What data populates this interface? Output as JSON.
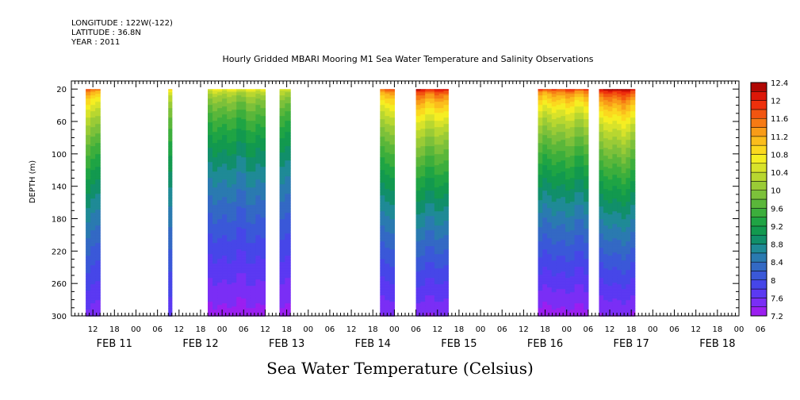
{
  "header": {
    "longitude": "LONGITUDE : 122W(-122)",
    "latitude": "LATITUDE : 36.8N",
    "year": "YEAR : 2011"
  },
  "chart_data": {
    "type": "heatmap",
    "title": "Hourly Gridded MBARI Mooring M1 Sea Water Temperature and Salinity Observations",
    "variable_label": "Sea Water Temperature (Celsius)",
    "ylabel": "DEPTH (m)",
    "y_inverted": true,
    "ylim": [
      10,
      300
    ],
    "y_ticks": [
      20,
      60,
      100,
      140,
      180,
      220,
      260,
      300
    ],
    "x_unit": "hours since 2011-02-10 12:00 (hour-of-day ticks)",
    "xlim": [
      0,
      186
    ],
    "hour_tick_labels": [
      "12",
      "18",
      "00",
      "06",
      "12",
      "18",
      "00",
      "06",
      "12",
      "18",
      "00",
      "06",
      "12",
      "18",
      "00",
      "06",
      "12",
      "18",
      "00",
      "06",
      "12",
      "18",
      "00",
      "06",
      "12",
      "18",
      "00",
      "06",
      "12",
      "18",
      "00",
      "06"
    ],
    "date_labels": [
      {
        "label": "FEB 11",
        "hour": 12
      },
      {
        "label": "FEB 12",
        "hour": 36
      },
      {
        "label": "FEB 13",
        "hour": 60
      },
      {
        "label": "FEB 14",
        "hour": 84
      },
      {
        "label": "FEB 15",
        "hour": 108
      },
      {
        "label": "FEB 16",
        "hour": 132
      },
      {
        "label": "FEB 17",
        "hour": 156
      },
      {
        "label": "FEB 18",
        "hour": 180
      }
    ],
    "colorbar": {
      "levels": [
        7.2,
        7.4,
        7.6,
        7.8,
        8.0,
        8.2,
        8.4,
        8.6,
        8.8,
        9.0,
        9.2,
        9.4,
        9.6,
        9.8,
        10.0,
        10.2,
        10.4,
        10.6,
        10.8,
        11.0,
        11.2,
        11.4,
        11.6,
        11.8,
        12.0,
        12.2,
        12.4
      ],
      "tick_labels": [
        "7.2",
        "7.6",
        "8",
        "8.4",
        "8.8",
        "9.2",
        "9.6",
        "10",
        "10.4",
        "10.8",
        "11.2",
        "11.6",
        "12",
        "12.4"
      ],
      "colors": [
        "#9b1ff0",
        "#7a2ef5",
        "#5b39f2",
        "#4646e8",
        "#3a58d8",
        "#3369c4",
        "#2a7ab0",
        "#1f8a96",
        "#118f6a",
        "#12994f",
        "#1fa444",
        "#3cae3c",
        "#5ab73a",
        "#7cc13a",
        "#9acb36",
        "#b8d730",
        "#d8e32a",
        "#f5ee22",
        "#fbd81f",
        "#fbbd1c",
        "#f99c18",
        "#f67a14",
        "#f25510",
        "#ee300c",
        "#dc1708",
        "#b00804"
      ]
    },
    "segments": [
      {
        "start": 4,
        "end": 8,
        "surface_temp": 11.6,
        "bottom_temp": 7.5
      },
      {
        "start": 27,
        "end": 28,
        "surface_temp": 11.0,
        "bottom_temp": 7.7
      },
      {
        "start": 38,
        "end": 54,
        "surface_temp": 10.6,
        "bottom_temp": 7.3
      },
      {
        "start": 58,
        "end": 61,
        "surface_temp": 10.5,
        "bottom_temp": 7.3
      },
      {
        "start": 86,
        "end": 90,
        "surface_temp": 11.6,
        "bottom_temp": 7.4
      },
      {
        "start": 96,
        "end": 105,
        "surface_temp": 12.1,
        "bottom_temp": 7.4
      },
      {
        "start": 130,
        "end": 144,
        "surface_temp": 11.8,
        "bottom_temp": 7.3
      },
      {
        "start": 147,
        "end": 157,
        "surface_temp": 12.3,
        "bottom_temp": 7.4
      }
    ]
  }
}
